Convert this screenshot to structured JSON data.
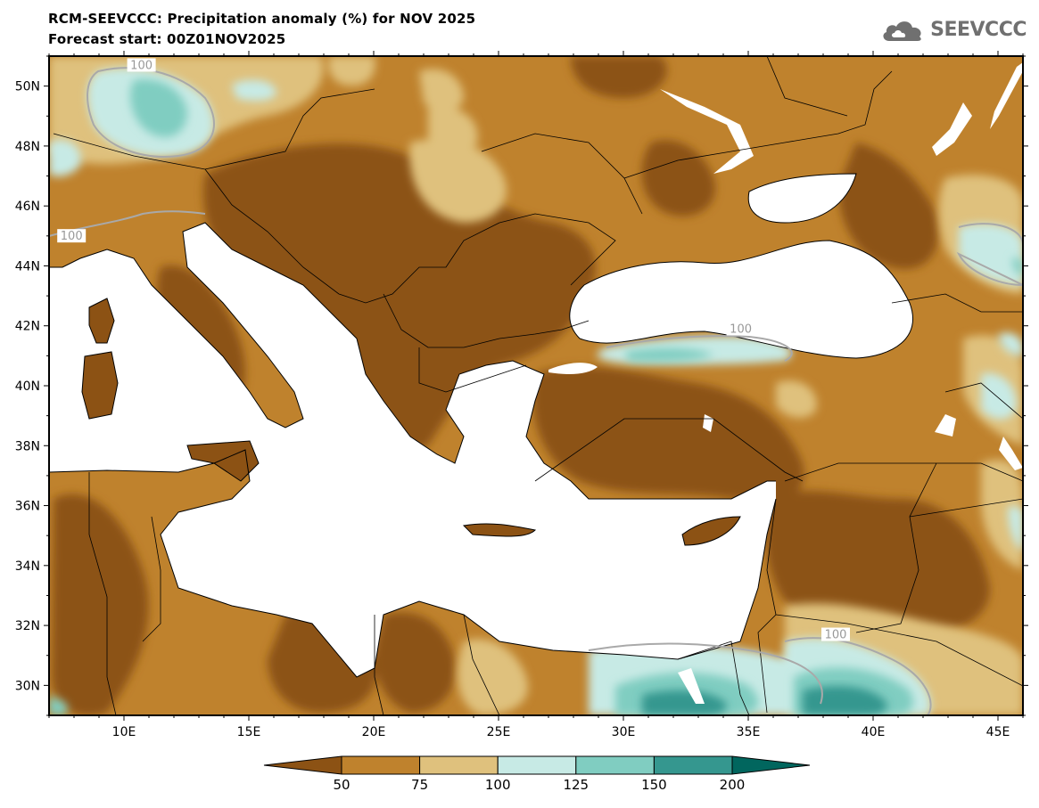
{
  "header": {
    "title_line1": "RCM-SEEVCCC: Precipitation anomaly (%) for NOV 2025",
    "title_line2": "Forecast start: 00Z01NOV2025"
  },
  "logo": {
    "text": "SEEVCCC",
    "icon": "cloud-icon",
    "color": "#707070"
  },
  "map": {
    "lon_range": [
      7,
      46
    ],
    "lat_range": [
      29,
      51
    ],
    "x_ticks": [
      "10E",
      "15E",
      "20E",
      "25E",
      "30E",
      "35E",
      "40E",
      "45E"
    ],
    "x_tick_values": [
      10,
      15,
      20,
      25,
      30,
      35,
      40,
      45
    ],
    "y_ticks": [
      "30N",
      "32N",
      "34N",
      "36N",
      "38N",
      "40N",
      "42N",
      "44N",
      "46N",
      "48N",
      "50N"
    ],
    "y_tick_values": [
      30,
      32,
      34,
      36,
      38,
      40,
      42,
      44,
      46,
      48,
      50
    ],
    "contour_labels": [
      {
        "text": "100",
        "lon": 10.7,
        "lat": 50.6
      },
      {
        "text": "100",
        "lon": 7.9,
        "lat": 44.9
      },
      {
        "text": "100",
        "lon": 34.7,
        "lat": 41.8
      },
      {
        "text": "100",
        "lon": 38.5,
        "lat": 31.6
      }
    ]
  },
  "colorbar": {
    "labels": [
      "50",
      "75",
      "100",
      "125",
      "150",
      "200"
    ],
    "colors": [
      "#8c5214",
      "#bf822d",
      "#dfc17d",
      "#c7eae5",
      "#80cdc1",
      "#35978f",
      "#01665e"
    ]
  }
}
